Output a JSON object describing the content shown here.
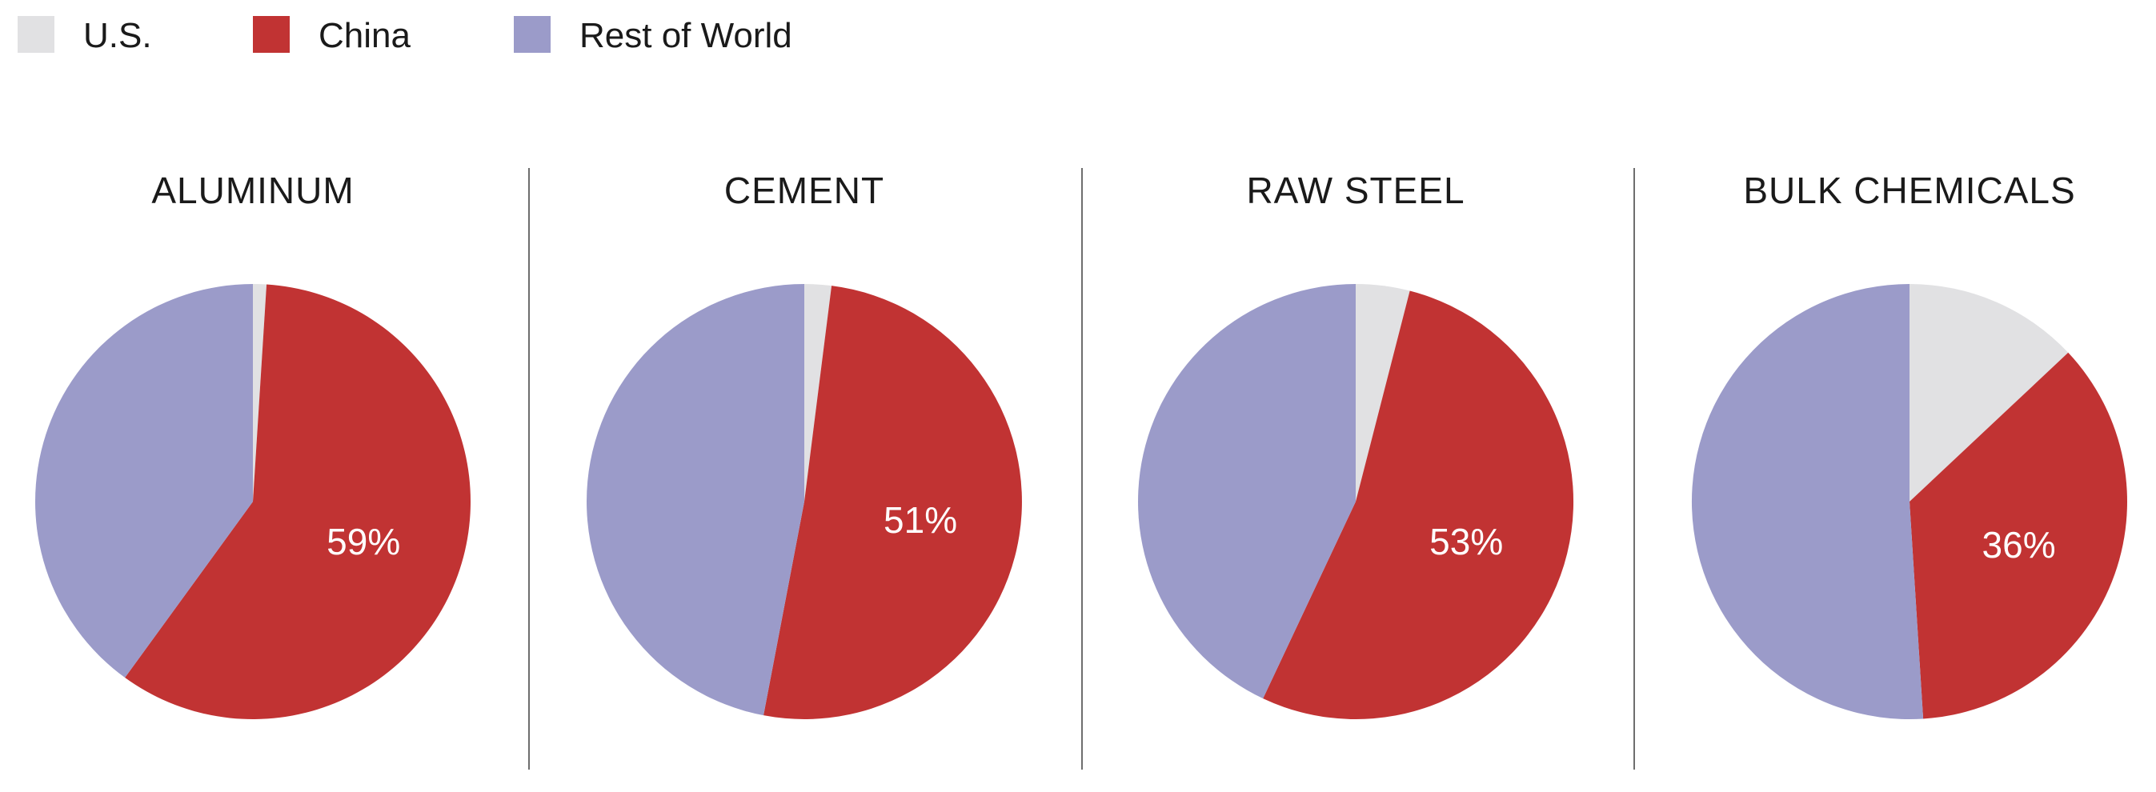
{
  "colors": {
    "us": "#e1e1e3",
    "china": "#c13333",
    "rest_of_world": "#9b9bc9",
    "divider": "#6e6e6e"
  },
  "legend": [
    {
      "key": "us",
      "label": "U.S."
    },
    {
      "key": "china",
      "label": "China"
    },
    {
      "key": "rest_of_world",
      "label": "Rest of World"
    }
  ],
  "chart_data": [
    {
      "type": "pie",
      "title": "ALUMINUM",
      "categories": [
        "U.S.",
        "China",
        "Rest of World"
      ],
      "values": [
        1,
        59,
        40
      ],
      "labels": [
        "",
        "59%",
        ""
      ],
      "legend": "top-left"
    },
    {
      "type": "pie",
      "title": "CEMENT",
      "categories": [
        "U.S.",
        "China",
        "Rest of World"
      ],
      "values": [
        2,
        51,
        47
      ],
      "labels": [
        "",
        "51%",
        ""
      ],
      "legend": "top-left"
    },
    {
      "type": "pie",
      "title": "RAW STEEL",
      "categories": [
        "U.S.",
        "China",
        "Rest of World"
      ],
      "values": [
        4,
        53,
        43
      ],
      "labels": [
        "",
        "53%",
        ""
      ],
      "legend": "top-left"
    },
    {
      "type": "pie",
      "title": "BULK CHEMICALS",
      "categories": [
        "U.S.",
        "China",
        "Rest of World"
      ],
      "values": [
        13,
        36,
        51
      ],
      "labels": [
        "",
        "36%",
        ""
      ],
      "legend": "top-left"
    }
  ]
}
